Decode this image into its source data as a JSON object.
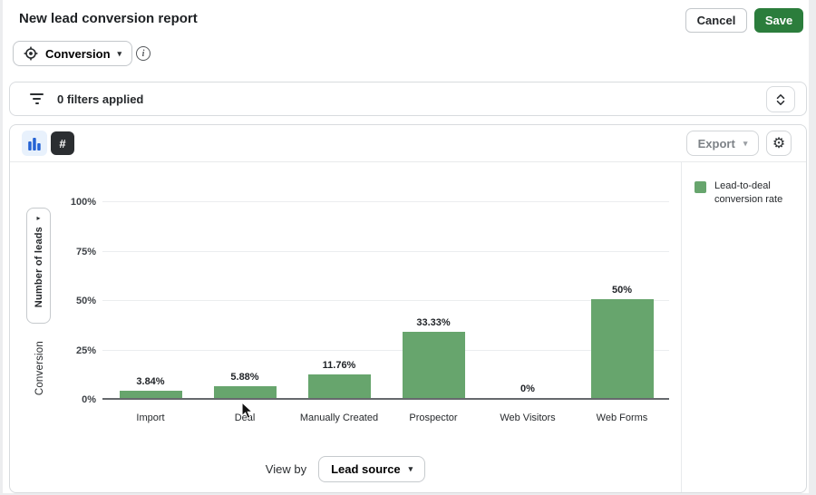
{
  "header": {
    "title": "New lead conversion report",
    "cancel_label": "Cancel",
    "save_label": "Save"
  },
  "report_type": {
    "selected": "Conversion"
  },
  "filters": {
    "summary": "0 filters applied"
  },
  "chart_toolbar": {
    "export_label": "Export"
  },
  "legend": {
    "items": [
      {
        "label": "Lead-to-deal conversion rate",
        "color": "#67a56d"
      }
    ]
  },
  "y_axis": {
    "collapsed_axis_label": "Number of leads",
    "axis_title": "Conversion"
  },
  "view_by": {
    "label": "View by",
    "selected_option": "Lead source"
  },
  "icons": {
    "info": "i",
    "caret_down": "▾",
    "collapsed_axis_arrow": "▸",
    "gear": "⚙",
    "hash": "#"
  },
  "colors": {
    "save_button_green": "#2b7d3c",
    "bar_green": "#67a56d",
    "toggle_active_blue": "#2563d4",
    "toggle_active_blue_bg": "#e8f1fc",
    "toggle_dark_bg": "#2b2e31"
  },
  "chart_data": {
    "type": "bar",
    "title": "",
    "categories": [
      "Import",
      "Deal",
      "Manually Created",
      "Prospector",
      "Web Visitors",
      "Web Forms"
    ],
    "values": [
      3.84,
      5.88,
      11.76,
      33.33,
      0,
      50
    ],
    "value_labels": [
      "3.84%",
      "5.88%",
      "11.76%",
      "33.33%",
      "0%",
      "50%"
    ],
    "series_name": "Lead-to-deal conversion rate",
    "bar_color": "#67a56d",
    "ylabel": "Conversion",
    "ylim": [
      0,
      100
    ],
    "yticks": [
      {
        "label": "0%",
        "value": 0
      },
      {
        "label": "25%",
        "value": 25
      },
      {
        "label": "50%",
        "value": 50
      },
      {
        "label": "75%",
        "value": 75
      },
      {
        "label": "100%",
        "value": 100
      }
    ],
    "grid": true,
    "legend_position": "right",
    "view_by": "Lead source"
  }
}
